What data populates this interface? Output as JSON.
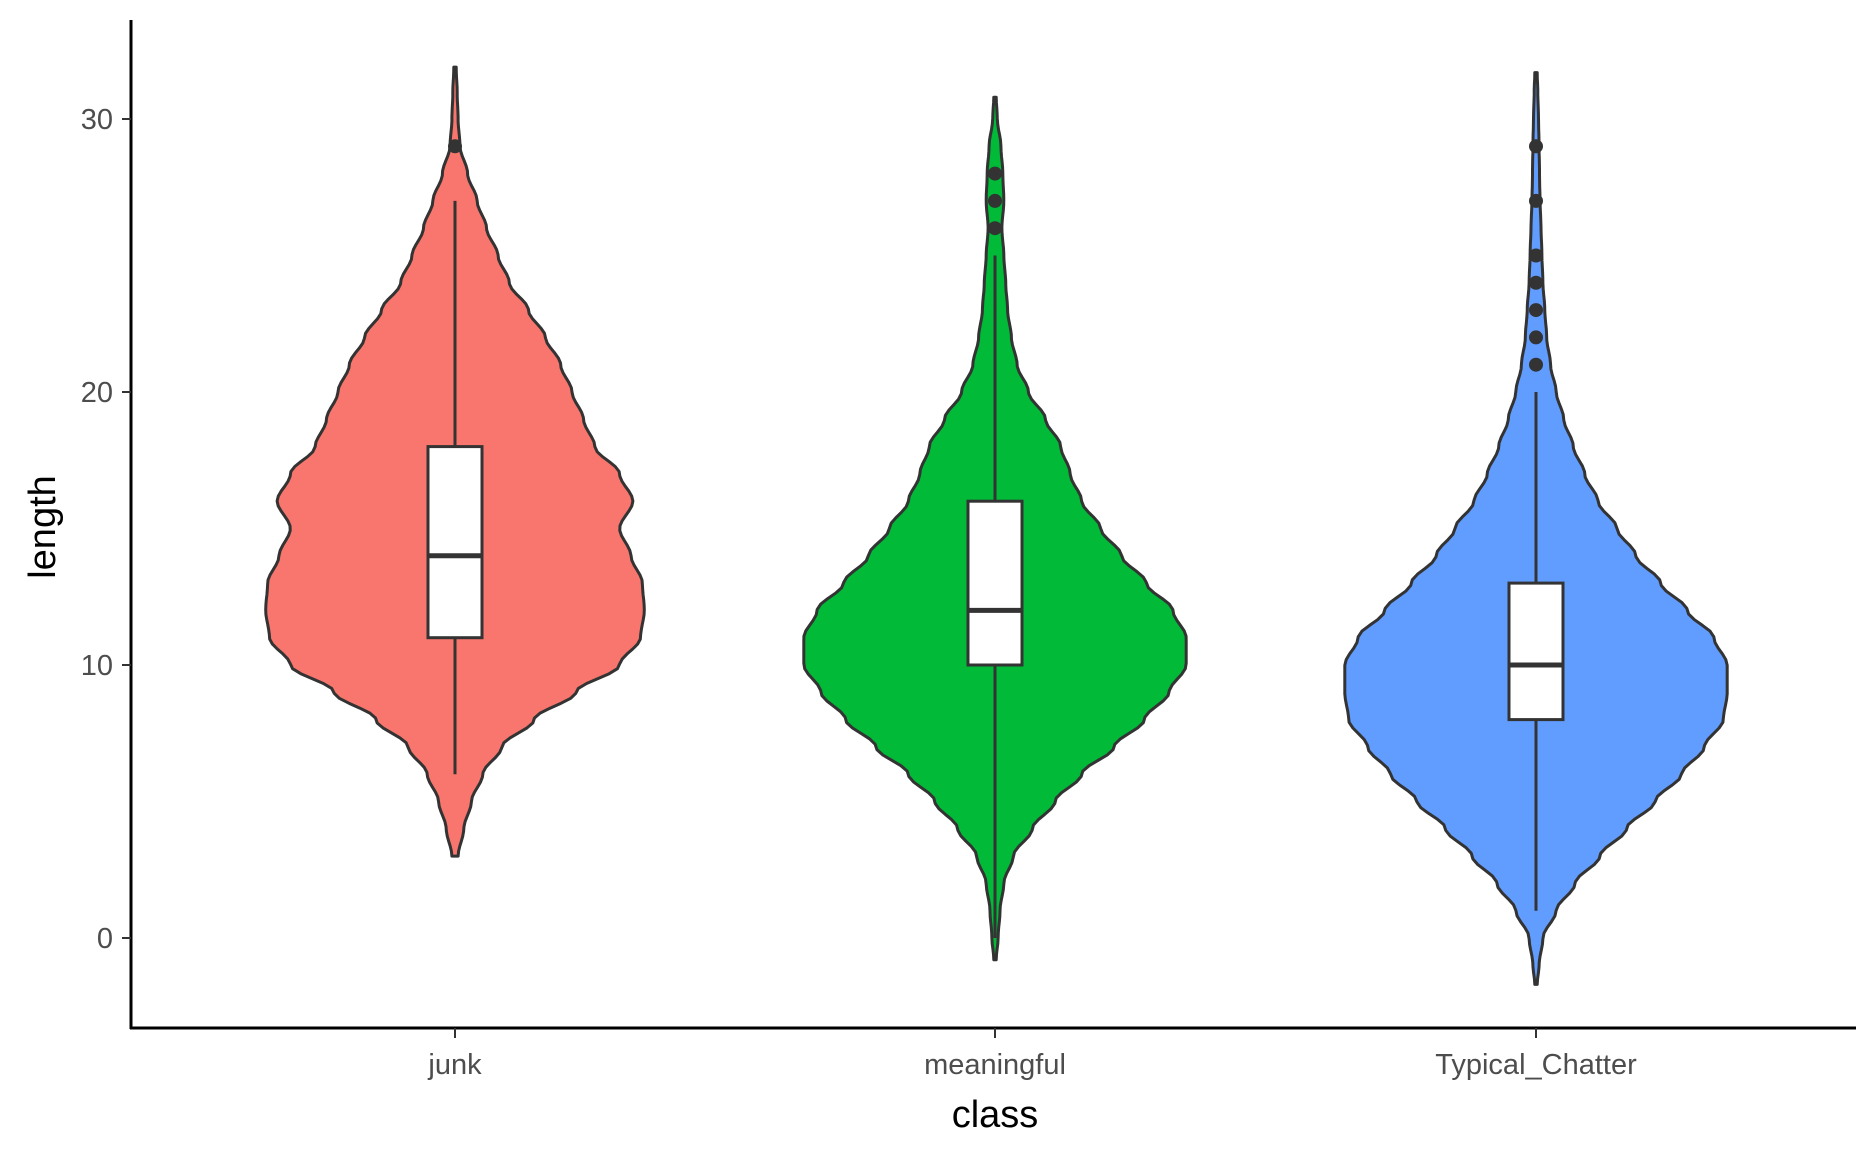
{
  "chart_data": {
    "type": "violin",
    "xlabel": "class",
    "ylabel": "length",
    "ylim": [
      -3.2,
      33.2
    ],
    "yticks": [
      0,
      10,
      20,
      30
    ],
    "grid": false,
    "legend": "none",
    "categories": [
      "junk",
      "meaningful",
      "Typical_Chatter"
    ],
    "series": [
      {
        "category": "junk",
        "color": "#F8766D",
        "violin_range": [
          3,
          31.9
        ],
        "density_profile": [
          [
            3,
            0.01
          ],
          [
            4,
            0.04
          ],
          [
            5,
            0.08
          ],
          [
            6,
            0.14
          ],
          [
            7,
            0.24
          ],
          [
            8,
            0.41
          ],
          [
            9,
            0.63
          ],
          [
            10,
            0.86
          ],
          [
            11,
            0.97
          ],
          [
            12,
            0.99
          ],
          [
            13,
            0.98
          ],
          [
            14,
            0.92
          ],
          [
            15,
            0.86
          ],
          [
            16,
            0.93
          ],
          [
            17,
            0.86
          ],
          [
            18,
            0.73
          ],
          [
            19,
            0.67
          ],
          [
            20,
            0.61
          ],
          [
            21,
            0.55
          ],
          [
            22,
            0.47
          ],
          [
            23,
            0.38
          ],
          [
            24,
            0.28
          ],
          [
            25,
            0.22
          ],
          [
            26,
            0.16
          ],
          [
            27,
            0.11
          ],
          [
            28,
            0.06
          ],
          [
            29,
            0.02
          ],
          [
            30,
            0.01
          ],
          [
            31,
            0.005
          ],
          [
            31.9,
            0.0
          ]
        ],
        "box": {
          "lower_whisker": 6,
          "q1": 11,
          "median": 14,
          "q3": 18,
          "upper_whisker": 27
        },
        "outliers": [
          29
        ]
      },
      {
        "category": "meaningful",
        "color": "#00BA38",
        "violin_range": [
          -0.8,
          30.8
        ],
        "density_profile": [
          [
            -0.8,
            0.0
          ],
          [
            0,
            0.01
          ],
          [
            1,
            0.02
          ],
          [
            2,
            0.04
          ],
          [
            3,
            0.09
          ],
          [
            4,
            0.19
          ],
          [
            5,
            0.31
          ],
          [
            6,
            0.45
          ],
          [
            7,
            0.62
          ],
          [
            8,
            0.78
          ],
          [
            9,
            0.91
          ],
          [
            10,
            1.0
          ],
          [
            11,
            1.0
          ],
          [
            12,
            0.93
          ],
          [
            13,
            0.79
          ],
          [
            14,
            0.66
          ],
          [
            15,
            0.55
          ],
          [
            16,
            0.45
          ],
          [
            17,
            0.39
          ],
          [
            18,
            0.34
          ],
          [
            19,
            0.26
          ],
          [
            20,
            0.17
          ],
          [
            21,
            0.11
          ],
          [
            22,
            0.08
          ],
          [
            23,
            0.06
          ],
          [
            24,
            0.05
          ],
          [
            25,
            0.04
          ],
          [
            26,
            0.03
          ],
          [
            27,
            0.04
          ],
          [
            28,
            0.035
          ],
          [
            29,
            0.025
          ],
          [
            30,
            0.006
          ],
          [
            30.8,
            0.0
          ]
        ],
        "box": {
          "lower_whisker": 0,
          "q1": 10,
          "median": 12,
          "q3": 16,
          "upper_whisker": 25
        },
        "outliers": [
          26,
          27,
          28
        ]
      },
      {
        "category": "Typical_Chatter",
        "color": "#619CFF",
        "violin_range": [
          -1.7,
          31.7
        ],
        "density_profile": [
          [
            -1.7,
            0.0
          ],
          [
            -1,
            0.01
          ],
          [
            0,
            0.03
          ],
          [
            1,
            0.1
          ],
          [
            2,
            0.2
          ],
          [
            3,
            0.33
          ],
          [
            4,
            0.47
          ],
          [
            5,
            0.62
          ],
          [
            6,
            0.76
          ],
          [
            7,
            0.88
          ],
          [
            8,
            0.98
          ],
          [
            9,
            1.0
          ],
          [
            10,
            1.0
          ],
          [
            11,
            0.93
          ],
          [
            12,
            0.79
          ],
          [
            13,
            0.65
          ],
          [
            14,
            0.52
          ],
          [
            15,
            0.42
          ],
          [
            16,
            0.32
          ],
          [
            17,
            0.25
          ],
          [
            18,
            0.19
          ],
          [
            19,
            0.14
          ],
          [
            20,
            0.1
          ],
          [
            21,
            0.07
          ],
          [
            22,
            0.05
          ],
          [
            23,
            0.04
          ],
          [
            24,
            0.03
          ],
          [
            25,
            0.025
          ],
          [
            26,
            0.02
          ],
          [
            27,
            0.015
          ],
          [
            28,
            0.012
          ],
          [
            29,
            0.01
          ],
          [
            30,
            0.007
          ],
          [
            31,
            0.003
          ],
          [
            31.7,
            0.0
          ]
        ],
        "box": {
          "lower_whisker": 1,
          "q1": 8,
          "median": 10,
          "q3": 13,
          "upper_whisker": 20
        },
        "outliers": [
          21,
          22,
          23,
          24,
          25,
          27,
          29
        ]
      }
    ]
  }
}
